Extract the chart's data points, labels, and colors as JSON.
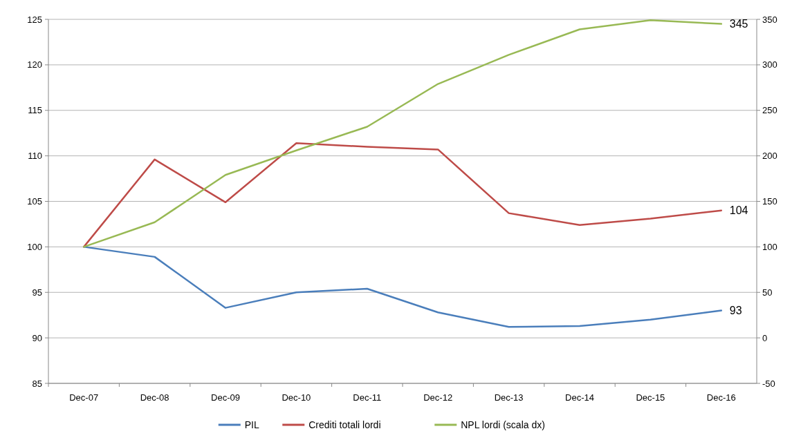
{
  "chart_data": {
    "type": "line",
    "categories": [
      "Dec-07",
      "Dec-08",
      "Dec-09",
      "Dec-10",
      "Dec-11",
      "Dec-12",
      "Dec-13",
      "Dec-14",
      "Dec-15",
      "Dec-16"
    ],
    "series": [
      {
        "name": "PIL",
        "color": "#4a7ebb",
        "values": [
          100,
          98.9,
          93.3,
          95.0,
          95.4,
          92.8,
          91.2,
          91.3,
          92.0,
          93
        ],
        "value_labels": [
          null,
          null,
          null,
          null,
          null,
          null,
          null,
          null,
          null,
          "93"
        ]
      },
      {
        "name": "Crediti totali lordi",
        "color": "#be4b48",
        "values": [
          100,
          109.6,
          104.9,
          111.4,
          111.0,
          110.7,
          103.7,
          102.4,
          103.1,
          104
        ],
        "value_labels": [
          null,
          null,
          null,
          null,
          null,
          null,
          null,
          null,
          null,
          "104"
        ]
      },
      {
        "name": "NPL lordi (scala dx)",
        "color": "#98b954",
        "axis": "y2",
        "values": [
          100,
          127,
          179,
          206,
          232,
          279,
          311,
          339,
          349,
          345
        ],
        "value_labels": [
          null,
          null,
          null,
          null,
          null,
          null,
          null,
          null,
          null,
          "345"
        ]
      }
    ],
    "ylim": [
      85,
      125
    ],
    "yticks": [
      85,
      90,
      95,
      100,
      105,
      110,
      115,
      120,
      125
    ],
    "y2lim": [
      -50,
      350
    ],
    "y2ticks": [
      -50,
      0,
      50,
      100,
      150,
      200,
      250,
      300,
      350
    ],
    "grid": "y",
    "legend": "bottom",
    "line_style": "solid",
    "marker": "none"
  }
}
